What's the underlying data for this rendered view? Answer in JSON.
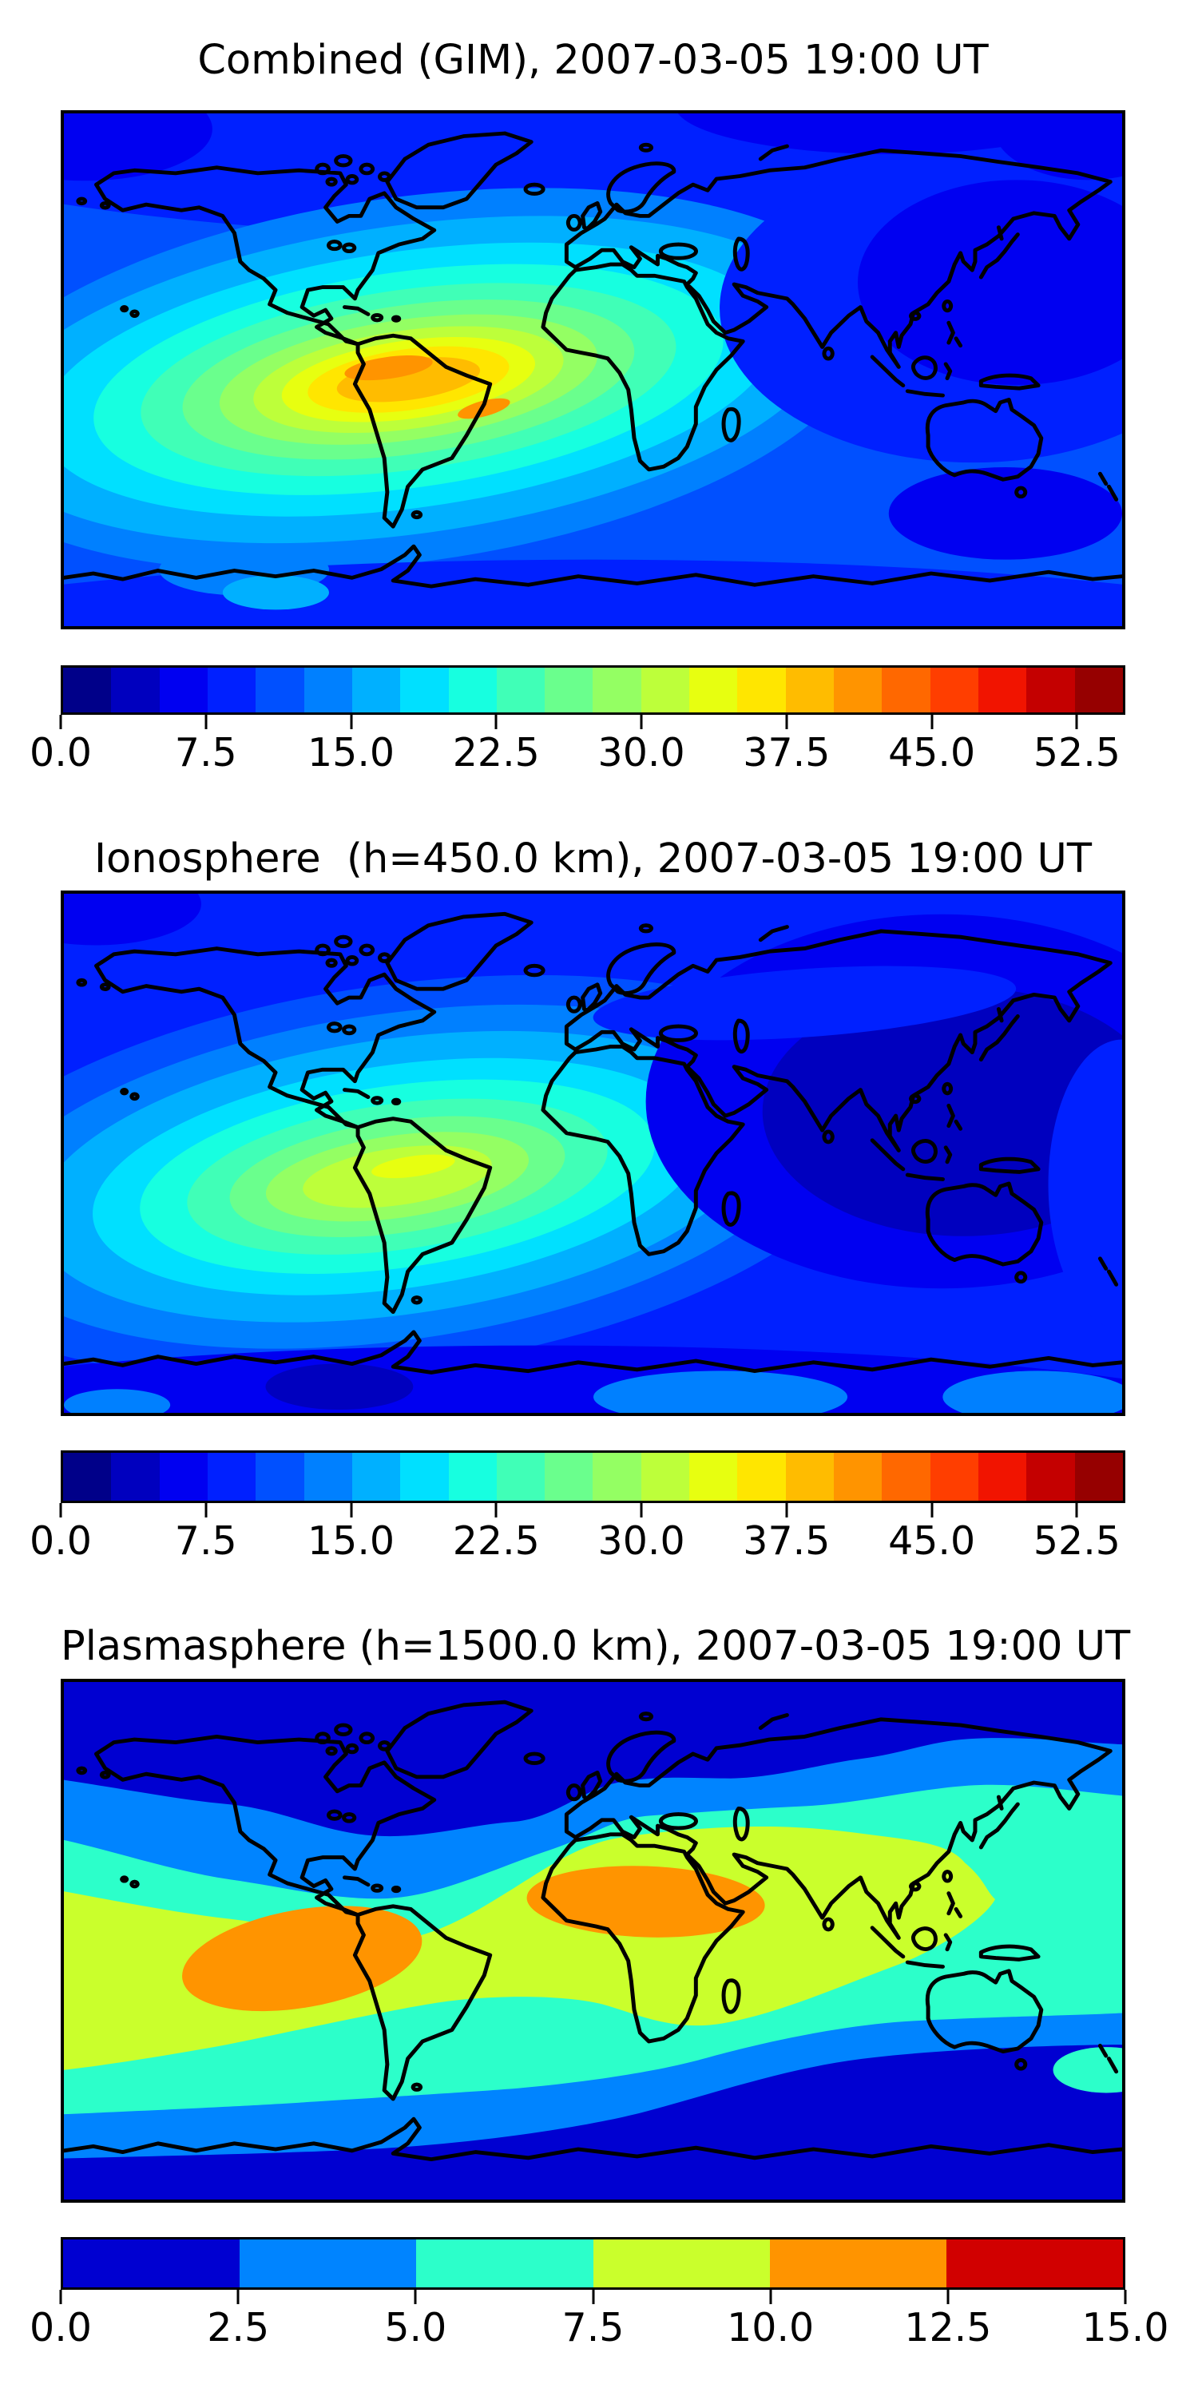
{
  "figure": {
    "background": "#ffffff",
    "n_panels": 3
  },
  "palette": {
    "coastline": "#000000",
    "frame": "#000000",
    "jet22": [
      "#000089",
      "#0000BF",
      "#0000F1",
      "#0020FF",
      "#0050FF",
      "#0080FF",
      "#00B0FF",
      "#00E0FF",
      "#17FFE0",
      "#40FFB7",
      "#6AFF8D",
      "#94FF63",
      "#BDFF3A",
      "#E7FF10",
      "#FFE600",
      "#FFBC00",
      "#FF9400",
      "#FF6800",
      "#FF3E00",
      "#F11400",
      "#C40000",
      "#960000"
    ],
    "jet6": [
      "#0000D1",
      "#0084FF",
      "#2CFFCA",
      "#CAFF2C",
      "#FF9400",
      "#D10000"
    ]
  },
  "chart_data": [
    {
      "type": "filled_contour_map",
      "title": "Combined (GIM), 2007-03-05 19:00 UT",
      "projection": "equirectangular",
      "lon_range": [
        -180,
        180
      ],
      "lat_range": [
        -90,
        90
      ],
      "contour_step": 2.5,
      "colorbar": {
        "vmin": 0,
        "vmax": 55,
        "tick_values": [
          0,
          7.5,
          15,
          22.5,
          30,
          37.5,
          45,
          52.5
        ],
        "tick_labels": [
          "0.0",
          "7.5",
          "15.0",
          "22.5",
          "30.0",
          "37.5",
          "45.0",
          "52.5"
        ],
        "segment_colors_ref": "jet22",
        "orientation": "horizontal"
      },
      "field_summary": "Single broad maximum (orange core ~45-50) centered over northern South America near 60W 10S, with concentric yellow/green/cyan contours spanning the Pacific and Atlantic; low values (<10, dark blue) at high latitudes and over central/east Asia and south of Australia."
    },
    {
      "type": "filled_contour_map",
      "title": "Ionosphere  (h=450.0 km), 2007-03-05 19:00 UT",
      "projection": "equirectangular",
      "lon_range": [
        -180,
        180
      ],
      "lat_range": [
        -90,
        90
      ],
      "contour_step": 2.5,
      "colorbar": {
        "vmin": 0,
        "vmax": 55,
        "tick_values": [
          0,
          7.5,
          15,
          22.5,
          30,
          37.5,
          45,
          52.5
        ],
        "tick_labels": [
          "0.0",
          "7.5",
          "15.0",
          "22.5",
          "30.0",
          "37.5",
          "45.0",
          "52.5"
        ],
        "segment_colors_ref": "jet22",
        "orientation": "horizontal"
      },
      "field_summary": "Weaker maximum (yellow-green core ~27-30) over northern South America surrounded by green/cyan rings; very low values (<5, navy) over most of Asia, the far east and high southern latitudes."
    },
    {
      "type": "filled_contour_map",
      "title": "Plasmasphere (h=1500.0 km), 2007-03-05 19:00 UT",
      "projection": "equirectangular",
      "lon_range": [
        -180,
        180
      ],
      "lat_range": [
        -90,
        90
      ],
      "contour_step": 2.5,
      "colorbar": {
        "vmin": 0,
        "vmax": 15,
        "tick_values": [
          0,
          2.5,
          5,
          7.5,
          10,
          12.5,
          15
        ],
        "tick_labels": [
          "0.0",
          "2.5",
          "5.0",
          "7.5",
          "10.0",
          "12.5",
          "15.0"
        ],
        "segment_colors_ref": "jet6",
        "orientation": "horizontal"
      },
      "field_summary": "Zonal banded structure: <2.5 (dark blue) at high latitudes, 2.5-5 and 5-7.5 bands toward mid-latitudes, broad 7.5-10 (yellow-green) equatorial belt, and two 10-12.5 (orange) cells: one over the eastern Pacific / western South America and one over North Africa / Arabia."
    }
  ]
}
